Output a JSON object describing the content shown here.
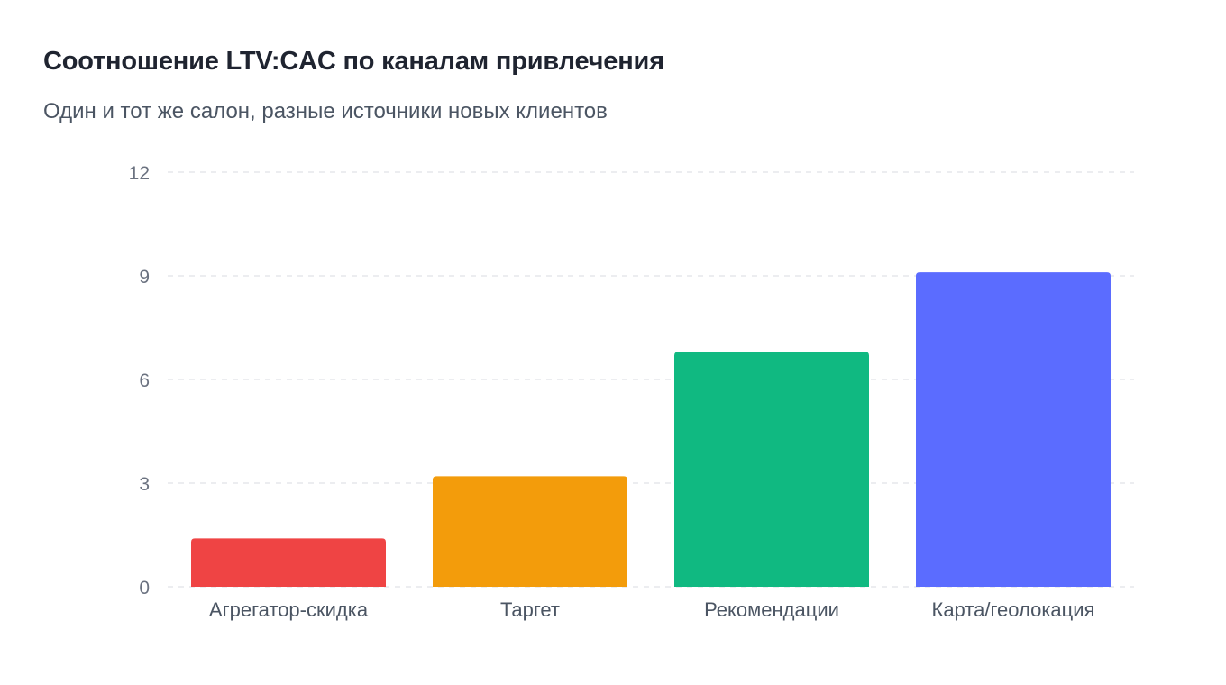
{
  "title": "Соотношение LTV:CAC по каналам привлечения",
  "subtitle": "Один и тот же салон, разные источники новых клиентов",
  "chart_data": {
    "type": "bar",
    "title": "Соотношение LTV:CAC по каналам привлечения",
    "subtitle": "Один и тот же салон, разные источники новых клиентов",
    "categories": [
      "Агрегатор-скидка",
      "Таргет",
      "Рекомендации",
      "Карта/геолокация"
    ],
    "values": [
      1.4,
      3.2,
      6.8,
      9.1
    ],
    "colors": [
      "#ef4444",
      "#f39c0b",
      "#10b981",
      "#5b6cff"
    ],
    "ylim": [
      0,
      12
    ],
    "yticks": [
      0,
      3,
      6,
      9,
      12
    ],
    "xlabel": "",
    "ylabel": "",
    "grid": "horizontal-dashed",
    "legend": "none"
  }
}
